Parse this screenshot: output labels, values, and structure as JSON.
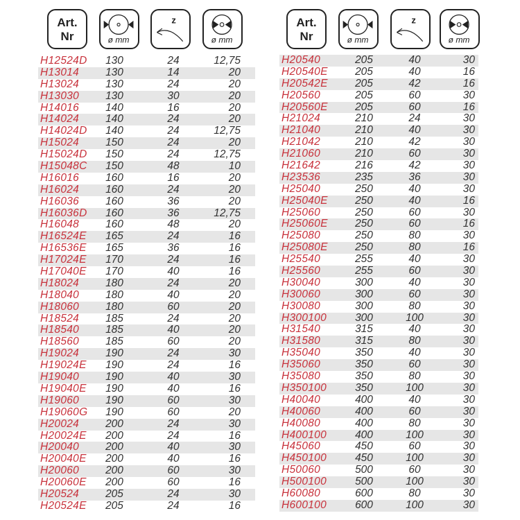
{
  "header": {
    "art_nr_line1": "Art.",
    "art_nr_line2": "Nr",
    "diameter_unit": "ø mm",
    "teeth_label": "z",
    "bore_unit": "ø mm",
    "icons": [
      "saw-blade-diameter-icon",
      "teeth-count-icon",
      "bore-diameter-icon"
    ]
  },
  "colors": {
    "article": "#c8323c",
    "value": "#333333",
    "stripe": "#e6e6e6"
  },
  "left_rows": [
    [
      "H12524D",
      "130",
      "24",
      "12,75"
    ],
    [
      "H13014",
      "130",
      "14",
      "20"
    ],
    [
      "H13024",
      "130",
      "24",
      "20"
    ],
    [
      "H13030",
      "130",
      "30",
      "20"
    ],
    [
      "H14016",
      "140",
      "16",
      "20"
    ],
    [
      "H14024",
      "140",
      "24",
      "20"
    ],
    [
      "H14024D",
      "140",
      "24",
      "12,75"
    ],
    [
      "H15024",
      "150",
      "24",
      "20"
    ],
    [
      "H15024D",
      "150",
      "24",
      "12,75"
    ],
    [
      "H15048C",
      "150",
      "48",
      "10"
    ],
    [
      "H16016",
      "160",
      "16",
      "20"
    ],
    [
      "H16024",
      "160",
      "24",
      "20"
    ],
    [
      "H16036",
      "160",
      "36",
      "20"
    ],
    [
      "H16036D",
      "160",
      "36",
      "12,75"
    ],
    [
      "H16048",
      "160",
      "48",
      "20"
    ],
    [
      "H16524E",
      "165",
      "24",
      "16"
    ],
    [
      "H16536E",
      "165",
      "36",
      "16"
    ],
    [
      "H17024E",
      "170",
      "24",
      "16"
    ],
    [
      "H17040E",
      "170",
      "40",
      "16"
    ],
    [
      "H18024",
      "180",
      "24",
      "20"
    ],
    [
      "H18040",
      "180",
      "40",
      "20"
    ],
    [
      "H18060",
      "180",
      "60",
      "20"
    ],
    [
      "H18524",
      "185",
      "24",
      "20"
    ],
    [
      "H18540",
      "185",
      "40",
      "20"
    ],
    [
      "H18560",
      "185",
      "60",
      "20"
    ],
    [
      "H19024",
      "190",
      "24",
      "30"
    ],
    [
      "H19024E",
      "190",
      "24",
      "16"
    ],
    [
      "H19040",
      "190",
      "40",
      "30"
    ],
    [
      "H19040E",
      "190",
      "40",
      "16"
    ],
    [
      "H19060",
      "190",
      "60",
      "30"
    ],
    [
      "H19060G",
      "190",
      "60",
      "20"
    ],
    [
      "H20024",
      "200",
      "24",
      "30"
    ],
    [
      "H20024E",
      "200",
      "24",
      "16"
    ],
    [
      "H20040",
      "200",
      "40",
      "30"
    ],
    [
      "H20040E",
      "200",
      "40",
      "16"
    ],
    [
      "H20060",
      "200",
      "60",
      "30"
    ],
    [
      "H20060E",
      "200",
      "60",
      "16"
    ],
    [
      "H20524",
      "205",
      "24",
      "30"
    ],
    [
      "H20524E",
      "205",
      "24",
      "16"
    ]
  ],
  "right_rows": [
    [
      "H20540",
      "205",
      "40",
      "30"
    ],
    [
      "H20540E",
      "205",
      "40",
      "16"
    ],
    [
      "H20542E",
      "205",
      "42",
      "16"
    ],
    [
      "H20560",
      "205",
      "60",
      "30"
    ],
    [
      "H20560E",
      "205",
      "60",
      "16"
    ],
    [
      "H21024",
      "210",
      "24",
      "30"
    ],
    [
      "H21040",
      "210",
      "40",
      "30"
    ],
    [
      "H21042",
      "210",
      "42",
      "30"
    ],
    [
      "H21060",
      "210",
      "60",
      "30"
    ],
    [
      "H21642",
      "216",
      "42",
      "30"
    ],
    [
      "H23536",
      "235",
      "36",
      "30"
    ],
    [
      "H25040",
      "250",
      "40",
      "30"
    ],
    [
      "H25040E",
      "250",
      "40",
      "16"
    ],
    [
      "H25060",
      "250",
      "60",
      "30"
    ],
    [
      "H25060E",
      "250",
      "60",
      "16"
    ],
    [
      "H25080",
      "250",
      "80",
      "30"
    ],
    [
      "H25080E",
      "250",
      "80",
      "16"
    ],
    [
      "H25540",
      "255",
      "40",
      "30"
    ],
    [
      "H25560",
      "255",
      "60",
      "30"
    ],
    [
      "H30040",
      "300",
      "40",
      "30"
    ],
    [
      "H30060",
      "300",
      "60",
      "30"
    ],
    [
      "H30080",
      "300",
      "80",
      "30"
    ],
    [
      "H300100",
      "300",
      "100",
      "30"
    ],
    [
      "H31540",
      "315",
      "40",
      "30"
    ],
    [
      "H31580",
      "315",
      "80",
      "30"
    ],
    [
      "H35040",
      "350",
      "40",
      "30"
    ],
    [
      "H35060",
      "350",
      "60",
      "30"
    ],
    [
      "H35080",
      "350",
      "80",
      "30"
    ],
    [
      "H350100",
      "350",
      "100",
      "30"
    ],
    [
      "H40040",
      "400",
      "40",
      "30"
    ],
    [
      "H40060",
      "400",
      "60",
      "30"
    ],
    [
      "H40080",
      "400",
      "80",
      "30"
    ],
    [
      "H400100",
      "400",
      "100",
      "30"
    ],
    [
      "H45060",
      "450",
      "60",
      "30"
    ],
    [
      "H450100",
      "450",
      "100",
      "30"
    ],
    [
      "H50060",
      "500",
      "60",
      "30"
    ],
    [
      "H500100",
      "500",
      "100",
      "30"
    ],
    [
      "H60080",
      "600",
      "80",
      "30"
    ],
    [
      "H600100",
      "600",
      "100",
      "30"
    ]
  ]
}
